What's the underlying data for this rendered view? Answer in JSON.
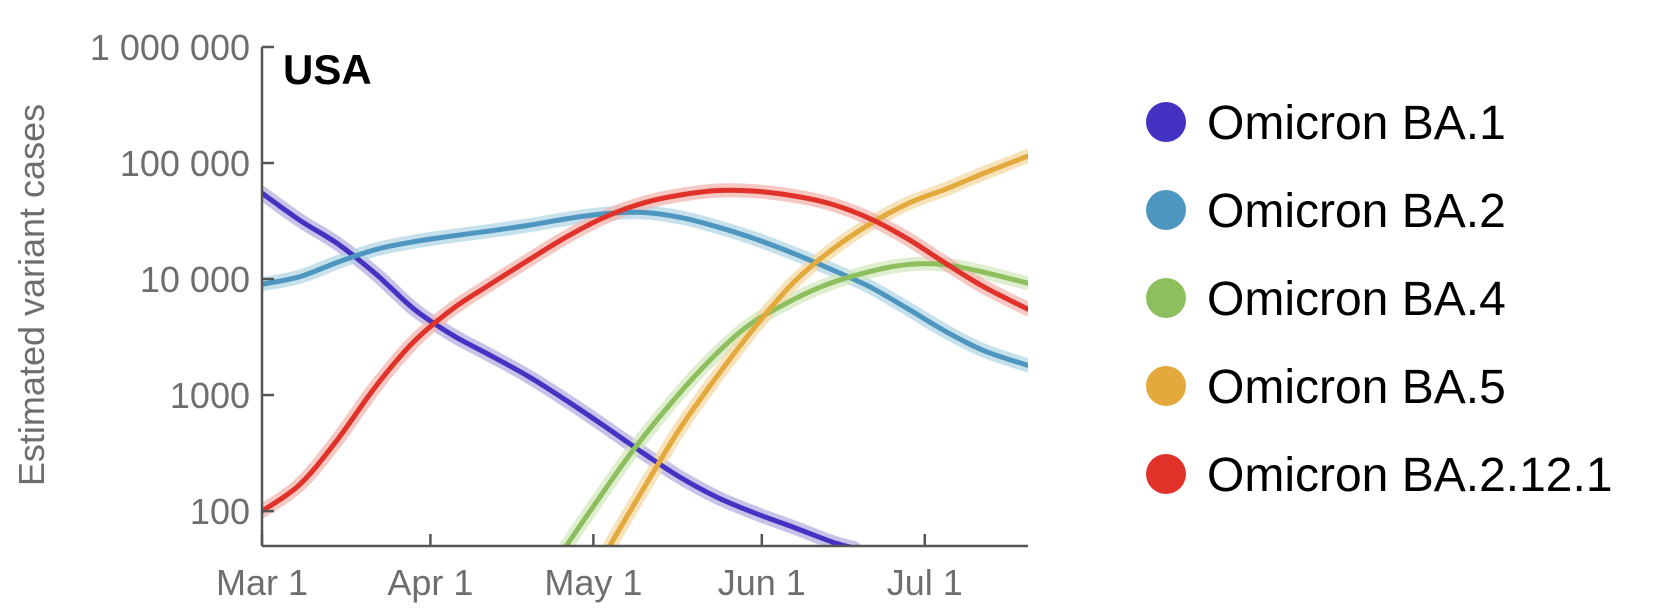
{
  "chart_data": {
    "type": "line",
    "title": "USA",
    "ylabel": "Estimated variant cases",
    "xlabel": "",
    "y_scale": "log",
    "xlim": [
      "2022-03-01",
      "2022-07-20"
    ],
    "ylim": [
      50,
      1000000
    ],
    "x_ticks": [
      {
        "date": "2022-03-01",
        "label": "Mar 1"
      },
      {
        "date": "2022-04-01",
        "label": "Apr 1"
      },
      {
        "date": "2022-05-01",
        "label": "May 1"
      },
      {
        "date": "2022-06-01",
        "label": "Jun 1"
      },
      {
        "date": "2022-07-01",
        "label": "Jul 1"
      }
    ],
    "y_ticks": [
      {
        "value": 100,
        "label": "100"
      },
      {
        "value": 1000,
        "label": "1000"
      },
      {
        "value": 10000,
        "label": "10 000"
      },
      {
        "value": 100000,
        "label": "100 000"
      },
      {
        "value": 1000000,
        "label": "1 000 000"
      }
    ],
    "grid": false,
    "legend_position": "right",
    "series": [
      {
        "name": "Omicron BA.1",
        "color": "#4432c2",
        "band_color": "#b7aee0",
        "points": [
          {
            "x": "2022-03-01",
            "y": 55000
          },
          {
            "x": "2022-03-08",
            "y": 32000
          },
          {
            "x": "2022-03-15",
            "y": 20000
          },
          {
            "x": "2022-03-22",
            "y": 11000
          },
          {
            "x": "2022-03-29",
            "y": 5500
          },
          {
            "x": "2022-04-05",
            "y": 3300
          },
          {
            "x": "2022-04-12",
            "y": 2200
          },
          {
            "x": "2022-04-19",
            "y": 1450
          },
          {
            "x": "2022-04-26",
            "y": 900
          },
          {
            "x": "2022-05-03",
            "y": 540
          },
          {
            "x": "2022-05-10",
            "y": 320
          },
          {
            "x": "2022-05-17",
            "y": 195
          },
          {
            "x": "2022-05-24",
            "y": 130
          },
          {
            "x": "2022-05-31",
            "y": 95
          },
          {
            "x": "2022-06-07",
            "y": 72
          },
          {
            "x": "2022-06-14",
            "y": 54
          },
          {
            "x": "2022-06-18",
            "y": 48
          }
        ]
      },
      {
        "name": "Omicron BA.2",
        "color": "#4d96c0",
        "band_color": "#b3d5e6",
        "points": [
          {
            "x": "2022-03-01",
            "y": 9000
          },
          {
            "x": "2022-03-08",
            "y": 10500
          },
          {
            "x": "2022-03-15",
            "y": 14000
          },
          {
            "x": "2022-03-22",
            "y": 18000
          },
          {
            "x": "2022-03-29",
            "y": 21000
          },
          {
            "x": "2022-04-05",
            "y": 23500
          },
          {
            "x": "2022-04-12",
            "y": 26000
          },
          {
            "x": "2022-04-19",
            "y": 29000
          },
          {
            "x": "2022-04-26",
            "y": 33000
          },
          {
            "x": "2022-05-03",
            "y": 36500
          },
          {
            "x": "2022-05-10",
            "y": 37500
          },
          {
            "x": "2022-05-17",
            "y": 34000
          },
          {
            "x": "2022-05-24",
            "y": 28000
          },
          {
            "x": "2022-05-31",
            "y": 22000
          },
          {
            "x": "2022-06-07",
            "y": 16500
          },
          {
            "x": "2022-06-14",
            "y": 12000
          },
          {
            "x": "2022-06-21",
            "y": 8500
          },
          {
            "x": "2022-06-28",
            "y": 5500
          },
          {
            "x": "2022-07-05",
            "y": 3500
          },
          {
            "x": "2022-07-12",
            "y": 2400
          },
          {
            "x": "2022-07-20",
            "y": 1800
          }
        ]
      },
      {
        "name": "Omicron BA.4",
        "color": "#8dbf5e",
        "band_color": "#d3e8bf",
        "points": [
          {
            "x": "2022-04-26",
            "y": 50
          },
          {
            "x": "2022-05-01",
            "y": 110
          },
          {
            "x": "2022-05-08",
            "y": 320
          },
          {
            "x": "2022-05-15",
            "y": 820
          },
          {
            "x": "2022-05-22",
            "y": 1900
          },
          {
            "x": "2022-05-29",
            "y": 3800
          },
          {
            "x": "2022-06-05",
            "y": 6000
          },
          {
            "x": "2022-06-12",
            "y": 8600
          },
          {
            "x": "2022-06-19",
            "y": 11000
          },
          {
            "x": "2022-06-26",
            "y": 13000
          },
          {
            "x": "2022-07-03",
            "y": 13500
          },
          {
            "x": "2022-07-10",
            "y": 12000
          },
          {
            "x": "2022-07-20",
            "y": 9200
          }
        ]
      },
      {
        "name": "Omicron BA.5",
        "color": "#e4a93c",
        "band_color": "#f3d9a6",
        "points": [
          {
            "x": "2022-05-04",
            "y": 50
          },
          {
            "x": "2022-05-10",
            "y": 150
          },
          {
            "x": "2022-05-17",
            "y": 520
          },
          {
            "x": "2022-05-24",
            "y": 1500
          },
          {
            "x": "2022-05-31",
            "y": 4000
          },
          {
            "x": "2022-06-07",
            "y": 9500
          },
          {
            "x": "2022-06-14",
            "y": 18000
          },
          {
            "x": "2022-06-21",
            "y": 30000
          },
          {
            "x": "2022-06-28",
            "y": 45000
          },
          {
            "x": "2022-07-05",
            "y": 60000
          },
          {
            "x": "2022-07-12",
            "y": 82000
          },
          {
            "x": "2022-07-20",
            "y": 115000
          }
        ]
      },
      {
        "name": "Omicron BA.2.12.1",
        "color": "#e03228",
        "band_color": "#f2b5b0",
        "points": [
          {
            "x": "2022-03-01",
            "y": 100
          },
          {
            "x": "2022-03-08",
            "y": 170
          },
          {
            "x": "2022-03-15",
            "y": 420
          },
          {
            "x": "2022-03-22",
            "y": 1200
          },
          {
            "x": "2022-03-29",
            "y": 2900
          },
          {
            "x": "2022-04-05",
            "y": 5500
          },
          {
            "x": "2022-04-12",
            "y": 9000
          },
          {
            "x": "2022-04-19",
            "y": 14500
          },
          {
            "x": "2022-04-26",
            "y": 23000
          },
          {
            "x": "2022-05-03",
            "y": 34000
          },
          {
            "x": "2022-05-10",
            "y": 45000
          },
          {
            "x": "2022-05-17",
            "y": 53000
          },
          {
            "x": "2022-05-24",
            "y": 58000
          },
          {
            "x": "2022-05-31",
            "y": 57000
          },
          {
            "x": "2022-06-07",
            "y": 52000
          },
          {
            "x": "2022-06-14",
            "y": 44000
          },
          {
            "x": "2022-06-21",
            "y": 33000
          },
          {
            "x": "2022-06-28",
            "y": 22000
          },
          {
            "x": "2022-07-05",
            "y": 13500
          },
          {
            "x": "2022-07-12",
            "y": 8500
          },
          {
            "x": "2022-07-20",
            "y": 5500
          }
        ]
      }
    ]
  }
}
